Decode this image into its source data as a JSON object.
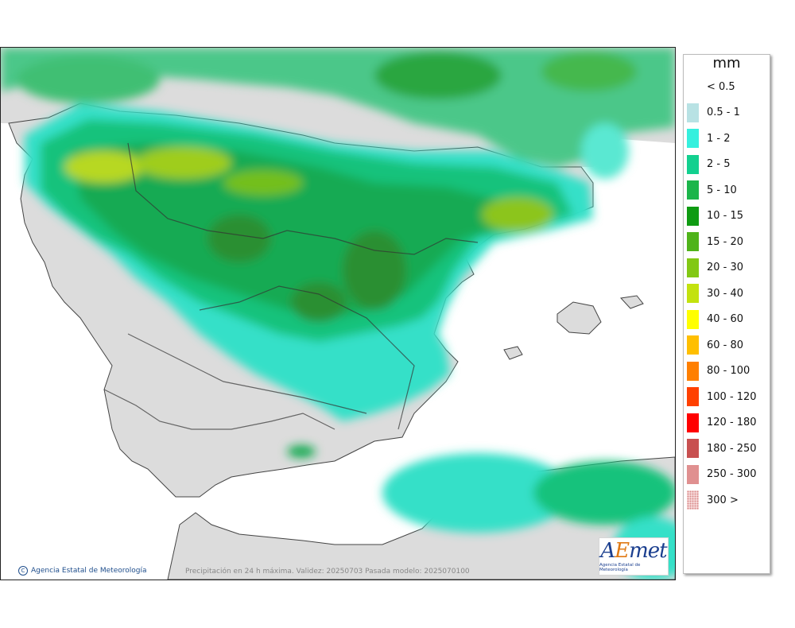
{
  "map": {
    "credit": "Agencia Estatal de Meteorología",
    "caption": "Precipitación en 24 h máxima. Validez: 20250703 Pasada modelo: 2025070100",
    "logo": {
      "word_a": "A",
      "word_e": "E",
      "word_rest": "met",
      "subtitle": "Agencia Estatal de Meteorología"
    },
    "land_color": "#dcdcdc",
    "sea_color": "#ffffff"
  },
  "legend": {
    "unit": "mm",
    "items": [
      {
        "label": "< 0.5",
        "color": "#ffffff"
      },
      {
        "label": "0.5 - 1",
        "color": "#b8e2e4"
      },
      {
        "label": "1 - 2",
        "color": "#35f0de"
      },
      {
        "label": "2 - 5",
        "color": "#12d08f"
      },
      {
        "label": "5 - 10",
        "color": "#1bb54a"
      },
      {
        "label": "10 - 15",
        "color": "#0f9b12"
      },
      {
        "label": "15 - 20",
        "color": "#4fb31a"
      },
      {
        "label": "20 - 30",
        "color": "#82c814"
      },
      {
        "label": "30 - 40",
        "color": "#c3e20e"
      },
      {
        "label": "40 - 60",
        "color": "#ffff00"
      },
      {
        "label": "60 - 80",
        "color": "#ffbf00"
      },
      {
        "label": "80 - 100",
        "color": "#ff7f00"
      },
      {
        "label": "100 - 120",
        "color": "#ff4000"
      },
      {
        "label": "120 - 180",
        "color": "#ff0000"
      },
      {
        "label": "180 - 250",
        "color": "#c85050"
      },
      {
        "label": "250 - 300",
        "color": "#e09090"
      },
      {
        "label": "300 >",
        "color": "#f8d8d8",
        "pattern": "dotted"
      }
    ]
  }
}
